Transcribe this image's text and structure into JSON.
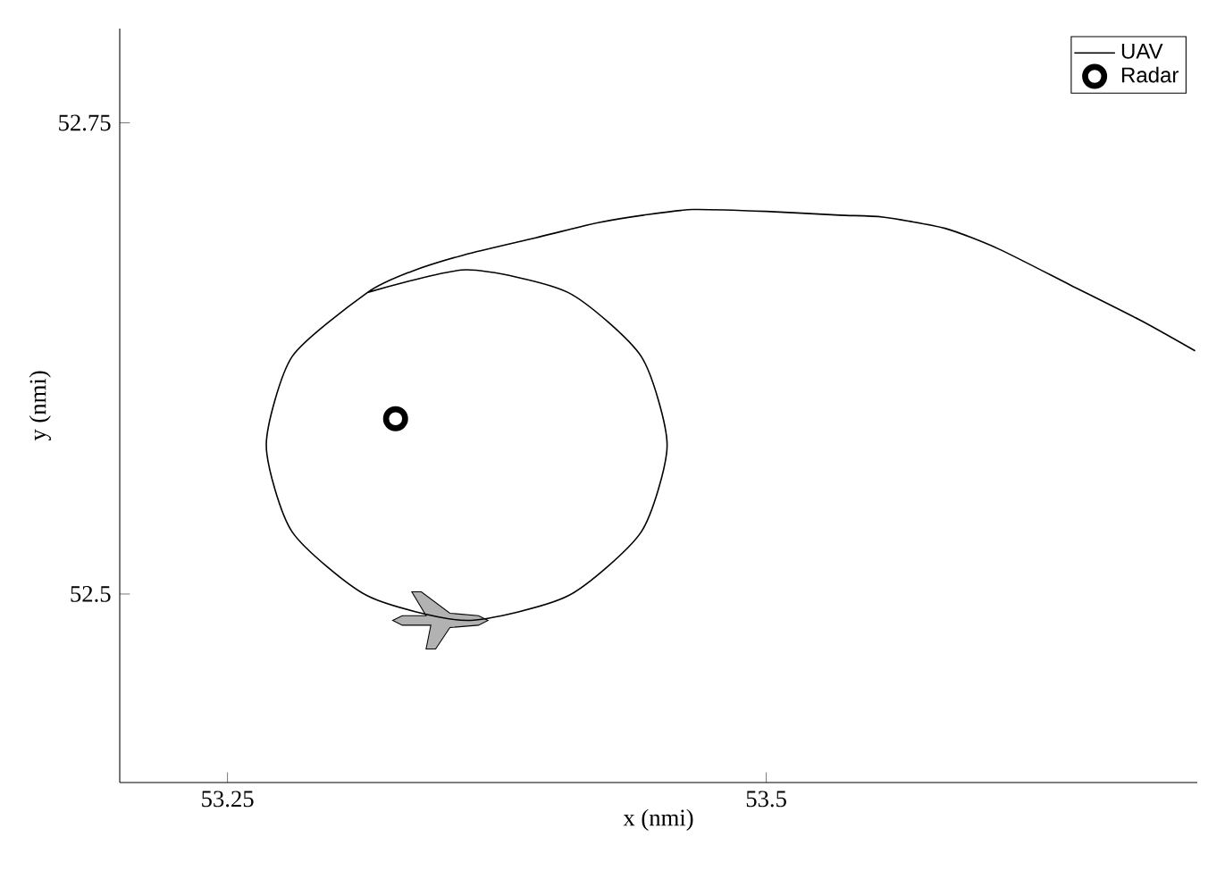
{
  "chart_data": {
    "type": "line",
    "xlabel": "x (nmi)",
    "ylabel": "y (nmi)",
    "xlim": [
      53.2,
      53.7
    ],
    "ylim": [
      52.4,
      52.8
    ],
    "xticks": [
      53.25,
      53.5
    ],
    "yticks": [
      52.5,
      52.75
    ],
    "legend": "top right",
    "grid": false,
    "series": [
      {
        "name": "UAV",
        "color": "#000000",
        "marker": "none",
        "x": [
          53.699,
          53.674,
          53.641,
          53.608,
          53.583,
          53.554,
          53.534,
          53.5,
          53.466,
          53.443,
          53.422,
          53.393,
          53.36,
          53.335,
          53.315,
          53.28,
          53.268,
          53.28,
          53.315,
          53.361,
          53.408,
          53.442,
          53.454,
          53.442,
          53.408,
          53.361,
          53.315
        ],
        "values": [
          52.629,
          52.645,
          52.664,
          52.683,
          52.694,
          52.7,
          52.701,
          52.703,
          52.704,
          52.701,
          52.697,
          52.689,
          52.68,
          52.671,
          52.66,
          52.626,
          52.579,
          52.533,
          52.499,
          52.486,
          52.499,
          52.533,
          52.579,
          52.626,
          52.66,
          52.672,
          52.66
        ]
      },
      {
        "name": "Radar",
        "type": "scatter",
        "color": "#000000",
        "marker": "circle",
        "x": [
          53.328
        ],
        "values": [
          52.593
        ]
      }
    ]
  }
}
